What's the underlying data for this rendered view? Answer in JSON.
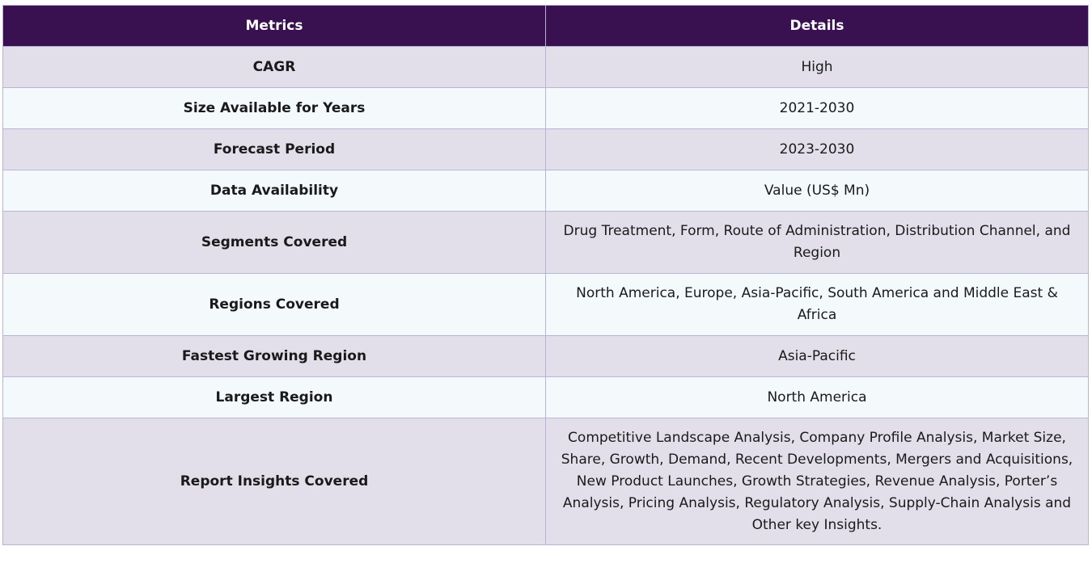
{
  "table": {
    "headers": {
      "metrics": "Metrics",
      "details": "Details"
    },
    "rows": [
      {
        "metric": "CAGR",
        "detail": "High"
      },
      {
        "metric": "Size Available for Years",
        "detail": "2021-2030"
      },
      {
        "metric": "Forecast Period",
        "detail": "2023-2030"
      },
      {
        "metric": "Data Availability",
        "detail": "Value (US$ Mn)"
      },
      {
        "metric": "Segments Covered",
        "detail": "Drug Treatment, Form, Route of Administration, Distribution Channel, and Region"
      },
      {
        "metric": "Regions Covered",
        "detail": "North America, Europe, Asia-Pacific, South America and Middle East & Africa"
      },
      {
        "metric": "Fastest Growing Region",
        "detail": "Asia-Pacific"
      },
      {
        "metric": "Largest Region",
        "detail": "North America"
      },
      {
        "metric": "Report Insights Covered",
        "detail": "Competitive Landscape Analysis, Company Profile Analysis, Market Size, Share, Growth, Demand, Recent Developments, Mergers and Acquisitions, New Product Launches, Growth Strategies, Revenue Analysis, Porter’s Analysis, Pricing Analysis, Regulatory Analysis, Supply-Chain Analysis and Other key Insights."
      }
    ]
  },
  "colors": {
    "header_bg": "#3a1150",
    "row_odd": "#e2dfeb",
    "row_even": "#f4f9fc",
    "border": "#b9b3d6"
  }
}
